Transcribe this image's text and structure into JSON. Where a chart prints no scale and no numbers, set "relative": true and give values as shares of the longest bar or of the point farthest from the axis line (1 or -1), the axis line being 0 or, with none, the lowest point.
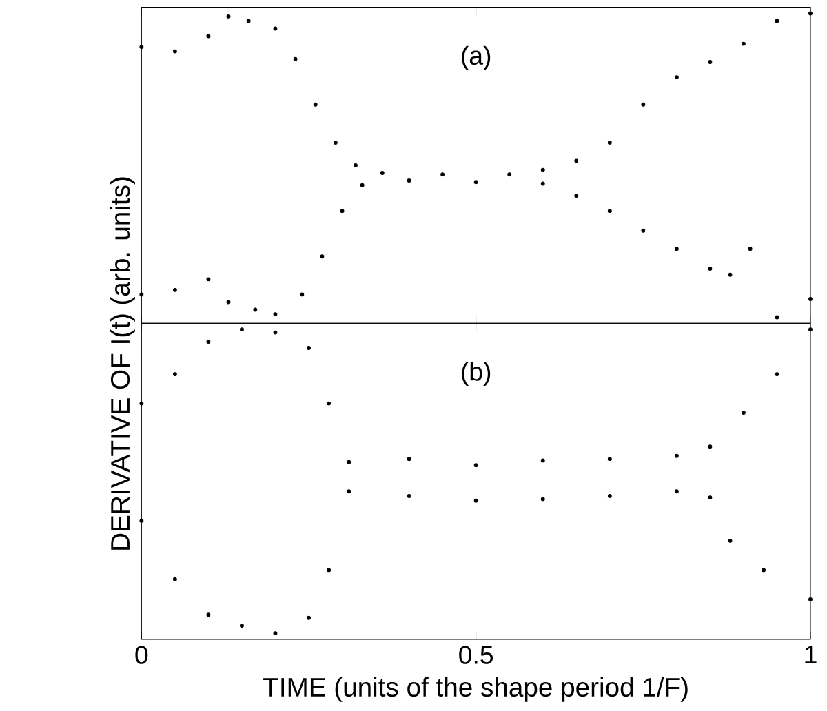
{
  "chart_data": [
    {
      "type": "scatter",
      "relative": true,
      "marker": "circle",
      "tick_labels": false,
      "xlim": [
        0,
        1
      ],
      "xticks": [
        0,
        0.5,
        1
      ],
      "annotations": [
        "(a)"
      ],
      "series": [
        {
          "color": "#000000",
          "x": [
            0.0,
            0.05,
            0.1,
            0.13,
            0.16,
            0.2,
            0.23,
            0.26,
            0.29,
            0.32,
            0.36,
            0.45,
            0.55,
            0.6,
            0.65,
            0.7,
            0.75,
            0.8,
            0.85,
            0.9,
            0.95,
            1.0
          ],
          "values": [
            0.89,
            0.875,
            0.925,
            0.99,
            0.975,
            0.95,
            0.85,
            0.7,
            0.575,
            0.5,
            0.475,
            0.47,
            0.47,
            0.485,
            0.515,
            0.575,
            0.7,
            0.79,
            0.84,
            0.9,
            0.975,
            1.0
          ]
        },
        {
          "color": "#000000",
          "x": [
            0.0,
            0.05,
            0.1,
            0.13,
            0.17,
            0.2,
            0.24,
            0.27,
            0.3,
            0.33,
            0.4,
            0.5,
            0.6,
            0.65,
            0.7,
            0.75,
            0.8,
            0.85,
            0.88,
            0.91,
            0.95,
            1.0
          ],
          "values": [
            0.075,
            0.09,
            0.125,
            0.05,
            0.025,
            0.01,
            0.075,
            0.2,
            0.35,
            0.435,
            0.45,
            0.445,
            0.44,
            0.4,
            0.35,
            0.285,
            0.225,
            0.16,
            0.14,
            0.225,
            0.0,
            0.06
          ]
        }
      ]
    },
    {
      "type": "scatter",
      "relative": true,
      "marker": "circle",
      "tick_labels": "x",
      "xlim": [
        0,
        1
      ],
      "xticks": [
        0,
        0.5,
        1
      ],
      "annotations": [
        "(b)"
      ],
      "xlabel": "TIME (units of the shape period 1/F)",
      "ylabel": "DERIVATIVE OF I(t) (arb. units)",
      "series": [
        {
          "color": "#000000",
          "x": [
            0.0,
            0.05,
            0.1,
            0.15,
            0.2,
            0.25,
            0.28,
            0.31,
            0.4,
            0.5,
            0.6,
            0.7,
            0.8,
            0.85,
            0.9,
            0.95,
            1.0
          ],
          "values": [
            0.76,
            0.855,
            0.96,
            1.0,
            0.99,
            0.94,
            0.76,
            0.57,
            0.58,
            0.56,
            0.575,
            0.58,
            0.59,
            0.62,
            0.73,
            0.855,
            1.0
          ]
        },
        {
          "color": "#000000",
          "x": [
            0.0,
            0.05,
            0.1,
            0.15,
            0.2,
            0.25,
            0.28,
            0.31,
            0.4,
            0.5,
            0.6,
            0.7,
            0.8,
            0.85,
            0.88,
            0.93,
            1.0
          ],
          "values": [
            0.38,
            0.19,
            0.075,
            0.04,
            0.015,
            0.065,
            0.22,
            0.475,
            0.46,
            0.445,
            0.45,
            0.46,
            0.475,
            0.455,
            0.315,
            0.22,
            0.125
          ]
        }
      ]
    }
  ]
}
